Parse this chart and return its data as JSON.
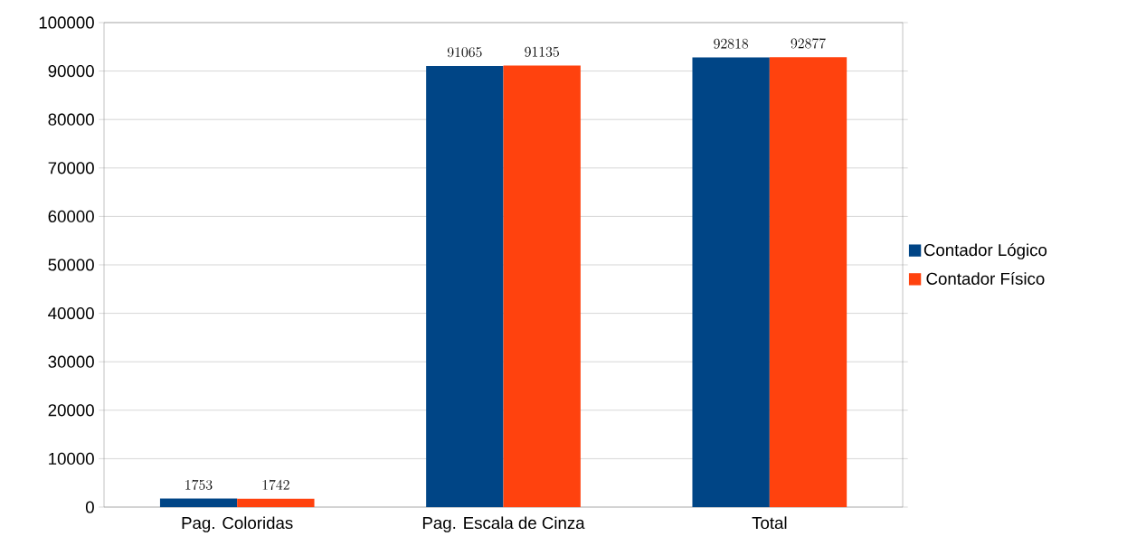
{
  "chart_data": {
    "type": "bar",
    "categories": [
      "Pag. Coloridas",
      "Pag. Escala de Cinza",
      "Total"
    ],
    "series": [
      {
        "name": "Contador Lógico",
        "color": "#004586",
        "values": [
          1753,
          91065,
          92818
        ]
      },
      {
        "name": "Contador Físico",
        "color": "#ff420e",
        "values": [
          1742,
          91135,
          92877
        ]
      }
    ],
    "ylim": [
      0,
      100000
    ],
    "yticks": [
      0,
      10000,
      20000,
      30000,
      40000,
      50000,
      60000,
      70000,
      80000,
      90000,
      100000
    ],
    "grid": "y",
    "legend": "right",
    "data_labels": true
  }
}
